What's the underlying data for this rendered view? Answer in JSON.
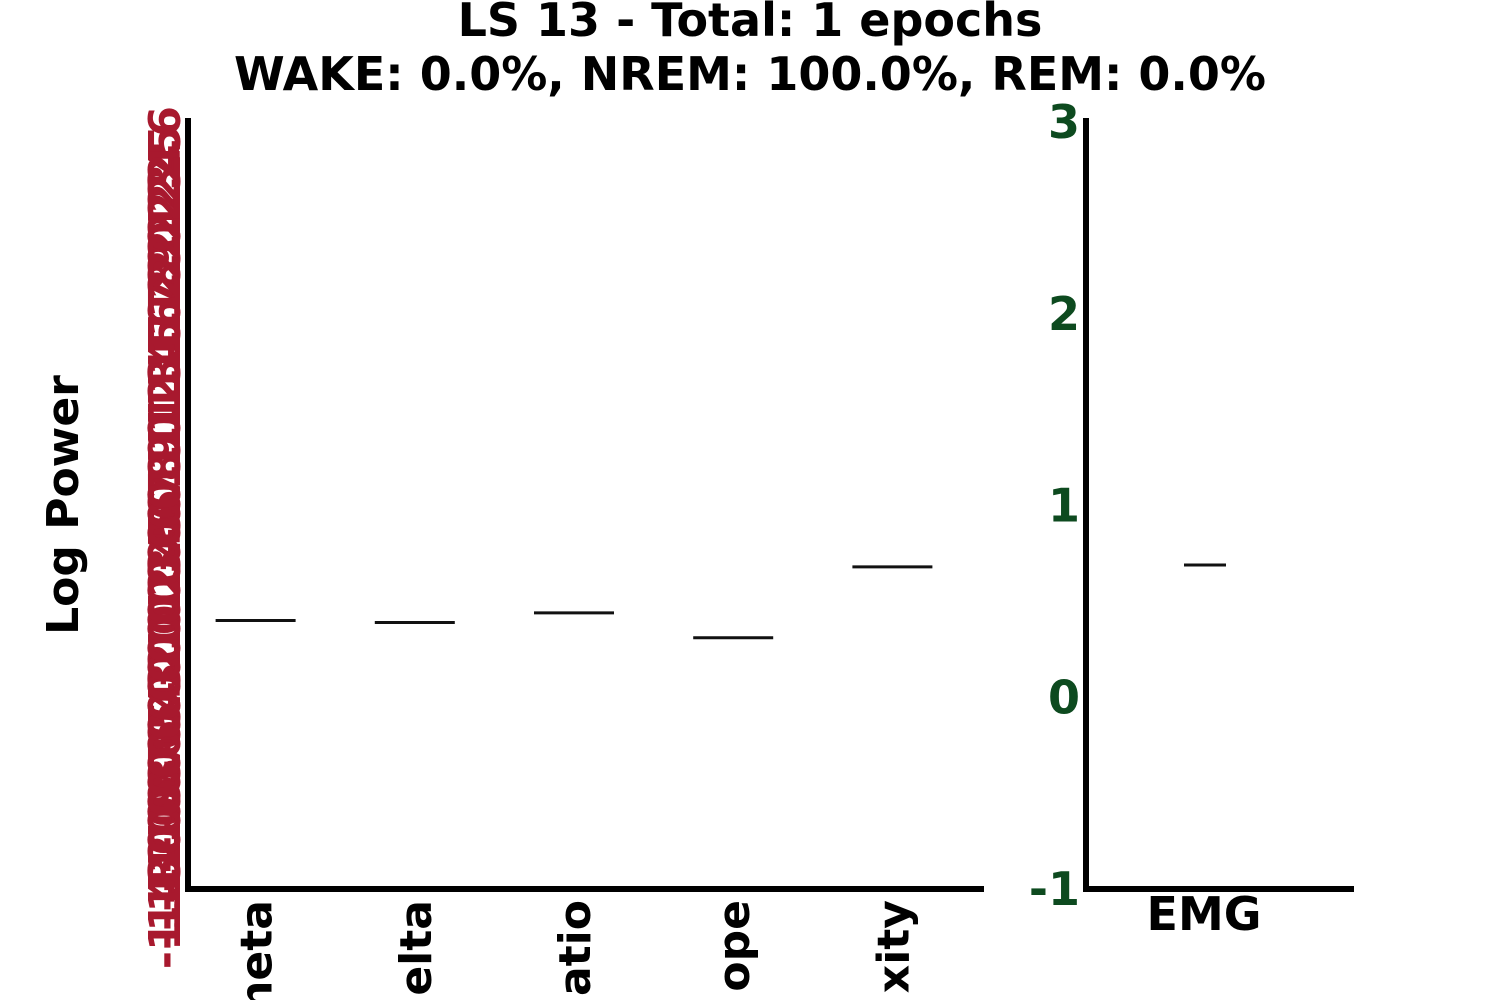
{
  "chart_data": [
    {
      "type": "bar",
      "title_line1": "LS 13 - Total: 1 epochs",
      "title_line2": "WAKE: 0.0%, NREM: 100.0%, REM: 0.0%",
      "ylabel": "Log Power",
      "tick_color": "#a8192e",
      "ylim": [
        -1.4,
        2.6
      ],
      "y_tick_labels": [
        "-1.4",
        "-1.3",
        "-1.2",
        "-1.1",
        "-1.0",
        "-0.9",
        "-0.8",
        "-0.7",
        "-0.6",
        "-0.5",
        "-0.4",
        "-0.3",
        "-0.2",
        "-0.1",
        "0.0",
        "0.1",
        "0.2",
        "0.3",
        "0.4",
        "0.5",
        "0.6",
        "0.7",
        "0.8",
        "0.9",
        "1.0",
        "1.1",
        "1.2",
        "1.3",
        "1.4",
        "1.5",
        "1.6",
        "1.7",
        "1.8",
        "1.9",
        "2.0",
        "2.1",
        "2.2",
        "2.3",
        "2.4",
        "2.5",
        "2.6"
      ],
      "categories": [
        "theta",
        "delta",
        "ratio",
        "slope",
        "complexity"
      ],
      "category_labels_visible": [
        "neta",
        "elta",
        "atio",
        "ope",
        "xity"
      ],
      "values": [
        0.0,
        -0.01,
        0.04,
        -0.09,
        0.28
      ]
    },
    {
      "type": "bar",
      "tick_color": "#0d4a1f",
      "ylim": [
        -1,
        3
      ],
      "y_ticks": [
        -1,
        0,
        1,
        2,
        3
      ],
      "y_tick_labels": [
        "-1",
        "0",
        "1",
        "2",
        "3"
      ],
      "categories": [
        "EMG"
      ],
      "values": [
        0.69
      ]
    }
  ]
}
